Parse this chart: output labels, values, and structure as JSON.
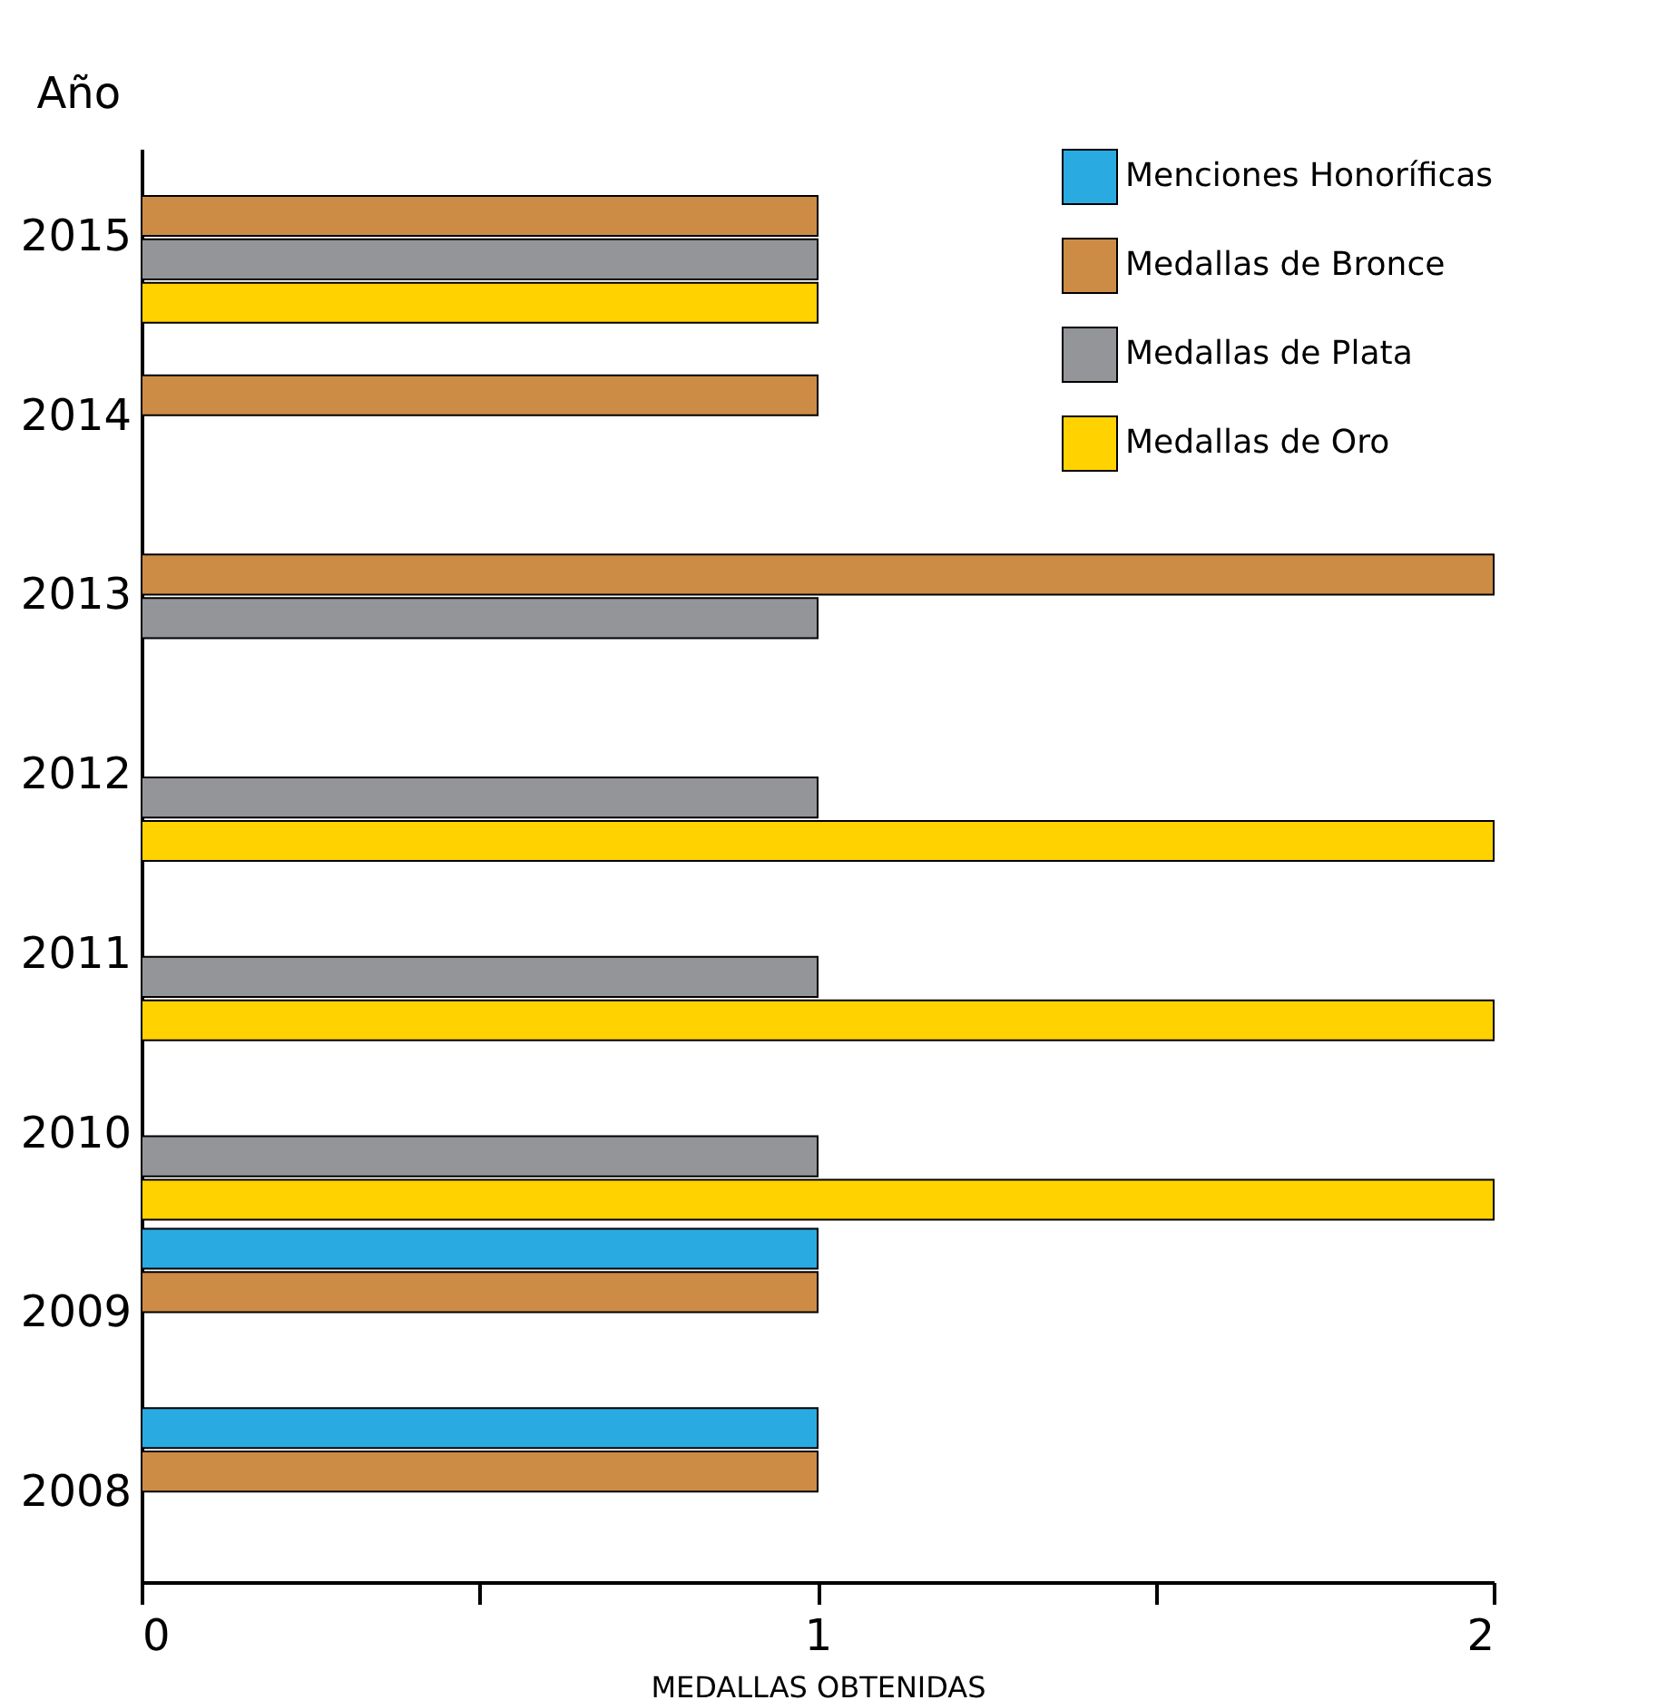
{
  "chart_data": {
    "type": "bar",
    "orientation": "horizontal",
    "xlabel": "MEDALLAS OBTENIDAS",
    "ylabel": "Año",
    "categories": [
      "2015",
      "2014",
      "2013",
      "2012",
      "2011",
      "2010",
      "2009",
      "2008"
    ],
    "series": [
      {
        "name": "Menciones Honoríficas",
        "color": "#29abe2",
        "values": [
          null,
          null,
          null,
          null,
          null,
          null,
          1,
          1
        ]
      },
      {
        "name": "Medallas de Bronce",
        "color": "#cd8c45",
        "values": [
          1,
          1,
          2,
          null,
          null,
          null,
          1,
          1
        ]
      },
      {
        "name": "Medallas de Plata",
        "color": "#939598",
        "values": [
          1,
          null,
          1,
          1,
          1,
          1,
          null,
          null
        ]
      },
      {
        "name": "Medallas de Oro",
        "color": "#ffd200",
        "values": [
          1,
          null,
          null,
          2,
          2,
          2,
          null,
          null
        ]
      }
    ],
    "xlim": [
      0,
      2
    ],
    "xticks": [
      0,
      {
        "value": 0.5,
        "label": null
      },
      1,
      {
        "value": 1.5,
        "label": null
      },
      2
    ],
    "grid": false,
    "legend": "top right"
  }
}
